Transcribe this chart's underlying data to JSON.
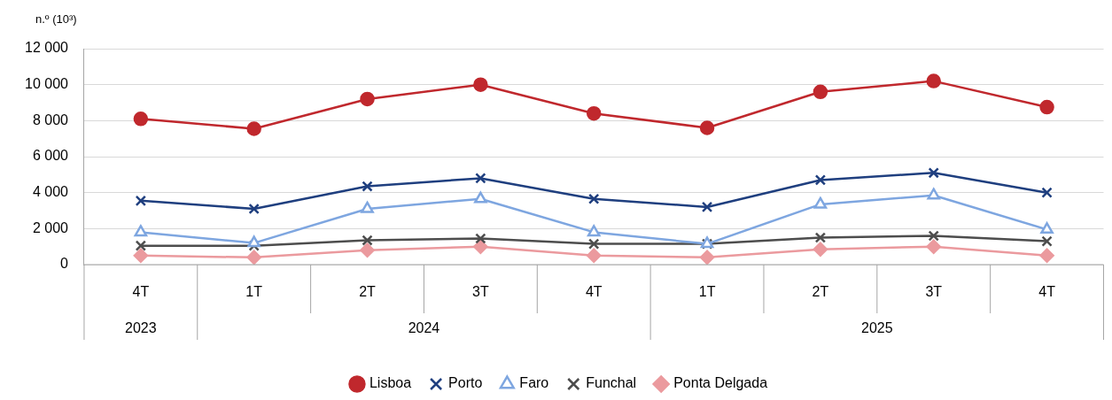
{
  "chart_data": {
    "type": "line",
    "ylabel": "n.º (10³)",
    "categories": [
      "4T",
      "1T",
      "2T",
      "3T",
      "4T",
      "1T",
      "2T",
      "3T",
      "4T"
    ],
    "annotations": [
      "2023",
      "2024",
      "2025"
    ],
    "series": [
      {
        "name": "Lisboa",
        "color": "#c0282d",
        "marker": "circle",
        "values": [
          8100,
          7550,
          9200,
          10000,
          8400,
          7600,
          9600,
          10200,
          8750
        ]
      },
      {
        "name": "Porto",
        "color": "#1f3f7f",
        "marker": "cross",
        "values": [
          3550,
          3100,
          4350,
          4800,
          3650,
          3200,
          4700,
          5100,
          4000
        ]
      },
      {
        "name": "Faro",
        "color": "#7ea6e0",
        "marker": "triangle",
        "values": [
          1800,
          1200,
          3100,
          3650,
          1800,
          1150,
          3350,
          3850,
          1950
        ]
      },
      {
        "name": "Funchal",
        "color": "#4d4d4d",
        "marker": "cross",
        "values": [
          1050,
          1050,
          1350,
          1450,
          1150,
          1150,
          1500,
          1600,
          1300
        ]
      },
      {
        "name": "Ponta Delgada",
        "color": "#eb9a9e",
        "marker": "diamond",
        "values": [
          500,
          400,
          800,
          1000,
          500,
          400,
          850,
          1000,
          500
        ]
      }
    ],
    "ylim": [
      0,
      12000
    ],
    "yticks": [
      0,
      {
        "value": 2000,
        "label": "2 000"
      },
      {
        "value": 4000,
        "label": "4 000"
      },
      {
        "value": 6000,
        "label": "6 000"
      },
      {
        "value": 8000,
        "label": "8 000"
      },
      {
        "value": 10000,
        "label": "10 000"
      },
      {
        "value": 12000,
        "label": "12 000"
      }
    ],
    "grid": "y",
    "legend": "bottom"
  }
}
